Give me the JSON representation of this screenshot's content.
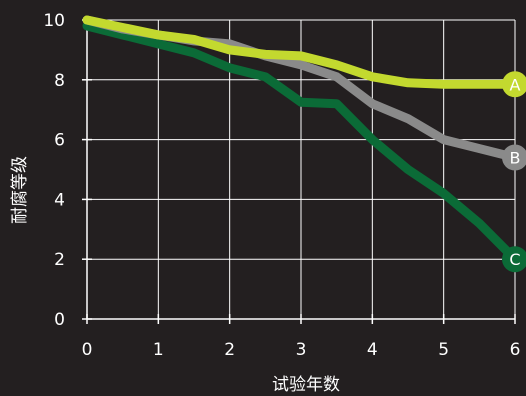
{
  "chart_data": {
    "type": "line",
    "xlabel": "试验年数",
    "ylabel": "耐腐等级",
    "xlim": [
      0,
      6
    ],
    "ylim": [
      0,
      10
    ],
    "xticks": [
      0,
      1,
      2,
      3,
      4,
      5,
      6
    ],
    "yticks": [
      0,
      2,
      4,
      6,
      8,
      10
    ],
    "grid": true,
    "background": "#231f20",
    "series": [
      {
        "name": "C",
        "color": "#0b6b37",
        "x": [
          0,
          0.5,
          1,
          1.5,
          2,
          2.5,
          3,
          3.5,
          4,
          4.5,
          5,
          5.5,
          6
        ],
        "y": [
          9.8,
          9.5,
          9.2,
          8.9,
          8.4,
          8.1,
          7.25,
          7.2,
          6.0,
          5.0,
          4.2,
          3.2,
          2.0
        ]
      },
      {
        "name": "B",
        "color": "#8a8a8a",
        "x": [
          0,
          0.5,
          1,
          1.5,
          2,
          2.5,
          3,
          3.5,
          4,
          4.5,
          5,
          5.5,
          6
        ],
        "y": [
          10.0,
          9.7,
          9.5,
          9.3,
          9.2,
          8.8,
          8.5,
          8.1,
          7.2,
          6.7,
          6.0,
          5.7,
          5.4
        ]
      },
      {
        "name": "A",
        "color": "#c3d92f",
        "x": [
          0,
          0.5,
          1,
          1.5,
          2,
          2.5,
          3,
          3.5,
          4,
          4.5,
          5,
          5.5,
          6
        ],
        "y": [
          10.0,
          9.75,
          9.5,
          9.35,
          9.0,
          8.85,
          8.8,
          8.5,
          8.1,
          7.9,
          7.85,
          7.85,
          7.85
        ]
      }
    ]
  }
}
